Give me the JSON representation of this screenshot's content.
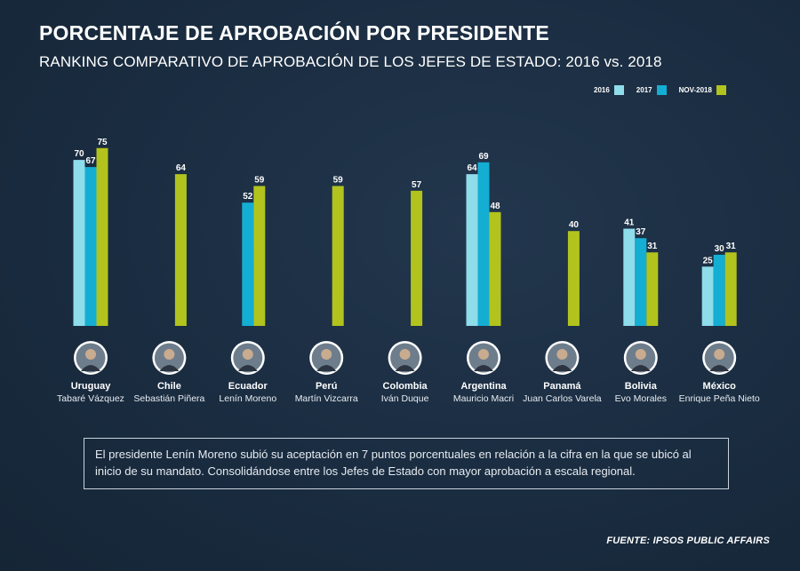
{
  "header": {
    "title": "PORCENTAJE DE APROBACIÓN POR PRESIDENTE",
    "subtitle": "RANKING COMPARATIVO DE APROBACIÓN DE LOS JEFES DE ESTADO: 2016 vs. 2018"
  },
  "legend": [
    {
      "label": "2016",
      "color": "#8fdcea"
    },
    {
      "label": "2017",
      "color": "#14aed3"
    },
    {
      "label": "NOV-2018",
      "color": "#b3c31e"
    }
  ],
  "chart_data": {
    "type": "bar",
    "title": "PORCENTAJE DE APROBACIÓN POR PRESIDENTE",
    "subtitle": "RANKING COMPARATIVO DE APROBACIÓN DE LOS JEFES DE ESTADO: 2016 vs. 2018",
    "xlabel": "",
    "ylabel": "",
    "ylim": [
      0,
      80
    ],
    "grid": false,
    "legend_position": "top-right",
    "categories": [
      "Uruguay",
      "Chile",
      "Ecuador",
      "Perú",
      "Colombia",
      "Argentina",
      "Panamá",
      "Bolivia",
      "México"
    ],
    "leaders": [
      "Tabaré Vázquez",
      "Sebastián Piñera",
      "Lenín Moreno",
      "Martín Vizcarra",
      "Iván Duque",
      "Mauricio Macri",
      "Juan Carlos Varela",
      "Evo Morales",
      "Enrique Peña Nieto"
    ],
    "series": [
      {
        "name": "2016",
        "color": "#8fdcea",
        "values": [
          70,
          null,
          null,
          null,
          null,
          64,
          null,
          41,
          25
        ]
      },
      {
        "name": "2017",
        "color": "#14aed3",
        "values": [
          67,
          null,
          52,
          null,
          null,
          69,
          null,
          37,
          30
        ]
      },
      {
        "name": "NOV-2018",
        "color": "#b3c31e",
        "values": [
          75,
          64,
          59,
          59,
          57,
          48,
          40,
          31,
          31
        ]
      }
    ]
  },
  "note": "El presidente Lenín Moreno subió su aceptación en 7 puntos porcentuales en relación a la cifra en la que se ubicó al inicio de su mandato. Consolidándose entre los Jefes de Estado con mayor aprobación a escala regional.",
  "source": "FUENTE: IPSOS PUBLIC AFFAIRS"
}
